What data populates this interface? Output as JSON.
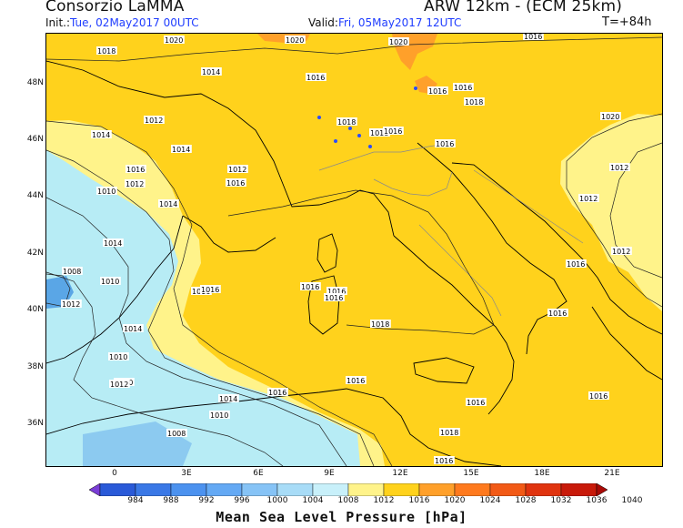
{
  "header": {
    "org": "Consorzio LaMMA",
    "model": "ARW 12km - (ECM 25km)",
    "init_label": "Init.:",
    "init_value": "Tue, 02May2017 00UTC",
    "valid_label": "Valid:",
    "valid_value": "Fri, 05May2017 12UTC",
    "forecast_step": "T=+84h"
  },
  "map": {
    "lat_labels": [
      "48N",
      "46N",
      "44N",
      "42N",
      "40N",
      "38N",
      "36N"
    ],
    "lon_labels": [
      "0",
      "3E",
      "6E",
      "9E",
      "12E",
      "15E",
      "18E",
      "21E"
    ],
    "isobar_labels": [
      "1020",
      "1020",
      "1020",
      "1018",
      "1016",
      "1014",
      "1016",
      "1016",
      "1016",
      "1018",
      "1018",
      "1018",
      "1020",
      "1012",
      "1014",
      "1016",
      "1014",
      "1012",
      "1016",
      "1016",
      "1010",
      "1012",
      "1016",
      "1012",
      "1014",
      "1012",
      "1008",
      "1010",
      "1016",
      "1016",
      "1016",
      "1016",
      "1018",
      "1014",
      "1016",
      "1014",
      "1012",
      "1010",
      "1010",
      "1012",
      "1014",
      "1016",
      "1008",
      "1016",
      "1016",
      "1018",
      "1010",
      "1016",
      "1016",
      "1012",
      "1016",
      "1016"
    ],
    "colors": {
      "water_bg": "#b7ecf5",
      "level_1008": "#8ccaf0",
      "level_1004": "#5aa6e6",
      "level_1012": "#fff38a",
      "level_1016": "#ffd21c",
      "level_1020": "#ffa02a",
      "coast": "#000000",
      "borders": "#8a8a8a",
      "lakes": "#2b4cff"
    }
  },
  "colorbar": {
    "title": "Mean Sea Level Pressure [hPa]",
    "ticks": [
      "984",
      "988",
      "992",
      "996",
      "1000",
      "1004",
      "1008",
      "1012",
      "1016",
      "1020",
      "1024",
      "1028",
      "1032",
      "1036",
      "1040"
    ],
    "colors": [
      "#7a3dd6",
      "#2a5ad8",
      "#3a78e6",
      "#4c92ef",
      "#64a9f4",
      "#86c3f6",
      "#a8dcf7",
      "#c8f0fa",
      "#fff38a",
      "#ffd21c",
      "#ffa02a",
      "#ff7a1e",
      "#f25a16",
      "#e0340f",
      "#c81a0a",
      "#a90a06"
    ]
  }
}
